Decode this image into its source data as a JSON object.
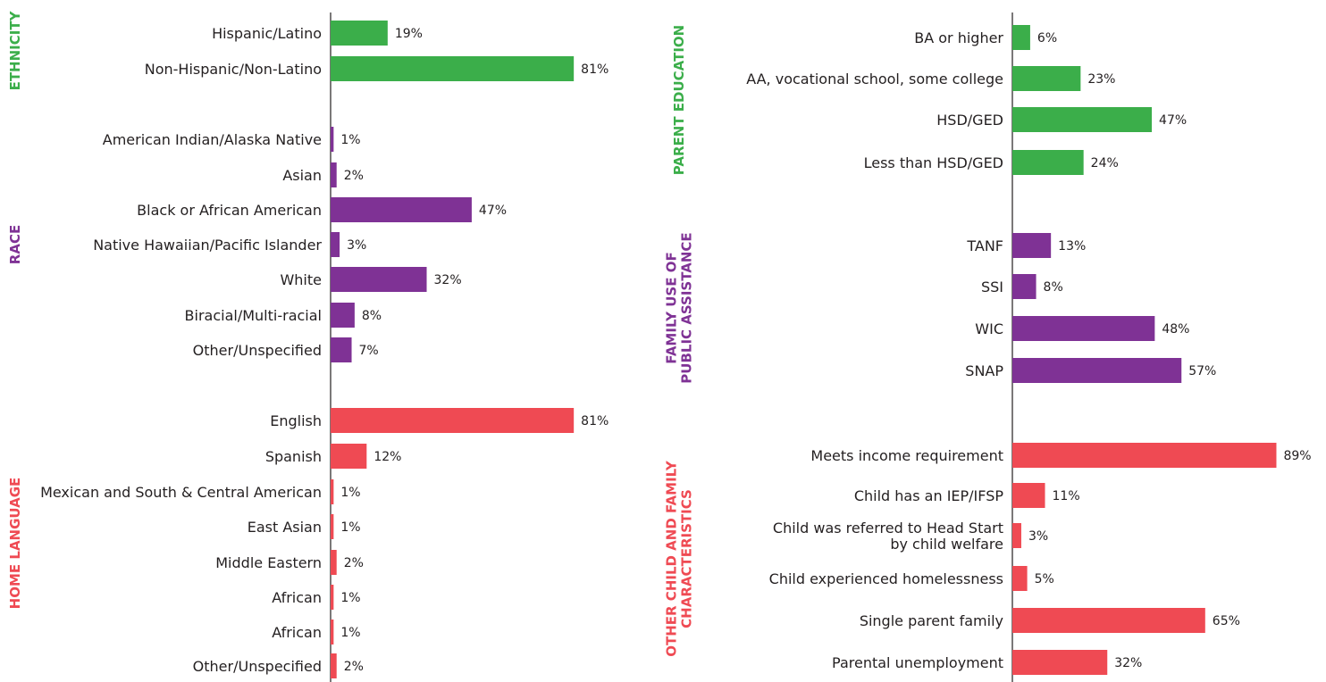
{
  "colors": {
    "green": "#3bae4a",
    "purple": "#7f3295",
    "red": "#ef4a53",
    "axis": "#231f20"
  },
  "chart_data": [
    {
      "type": "bar",
      "orientation": "horizontal",
      "value_unit": "%",
      "groups": [
        {
          "title": [
            "ETHNICITY"
          ],
          "color": "green",
          "categories": [
            "Hispanic/Latino",
            "Non-Hispanic/Non-Latino"
          ],
          "values": [
            19,
            81
          ]
        },
        {
          "title": [
            "RACE"
          ],
          "color": "purple",
          "categories": [
            "American Indian/Alaska Native",
            "Asian",
            "Black or African American",
            "Native Hawaiian/Pacific Islander",
            "White",
            "Biracial/Multi-racial",
            "Other/Unspecified"
          ],
          "values": [
            1,
            2,
            47,
            3,
            32,
            8,
            7
          ]
        },
        {
          "title": [
            "HOME LANGUAGE"
          ],
          "color": "red",
          "categories": [
            "English",
            "Spanish",
            "Mexican and South & Central American",
            "East Asian",
            "Middle Eastern",
            "African",
            "African",
            "Other/Unspecified"
          ],
          "values": [
            81,
            12,
            1,
            1,
            2,
            1,
            1,
            2
          ]
        }
      ]
    },
    {
      "type": "bar",
      "orientation": "horizontal",
      "value_unit": "%",
      "groups": [
        {
          "title": [
            "PARENT EDUCATION"
          ],
          "color": "green",
          "categories": [
            "BA or higher",
            "AA, vocational school, some college",
            "HSD/GED",
            "Less than HSD/GED"
          ],
          "values": [
            6,
            23,
            47,
            24
          ]
        },
        {
          "title": [
            "FAMILY USE OF",
            "PUBLIC ASSISTANCE"
          ],
          "color": "purple",
          "categories": [
            "TANF",
            "SSI",
            "WIC",
            "SNAP"
          ],
          "values": [
            13,
            8,
            48,
            57
          ]
        },
        {
          "title": [
            "OTHER CHILD AND FAMILY",
            "CHARACTERISTICS"
          ],
          "color": "red",
          "categories": [
            [
              "Meets income requirement"
            ],
            [
              "Child has an IEP/IFSP"
            ],
            [
              "Child was referred to Head Start",
              "by child welfare"
            ],
            [
              "Child experienced homelessness"
            ],
            [
              "Single parent family"
            ],
            [
              "Parental unemployment"
            ]
          ],
          "values": [
            89,
            11,
            3,
            5,
            65,
            32
          ]
        }
      ]
    }
  ]
}
